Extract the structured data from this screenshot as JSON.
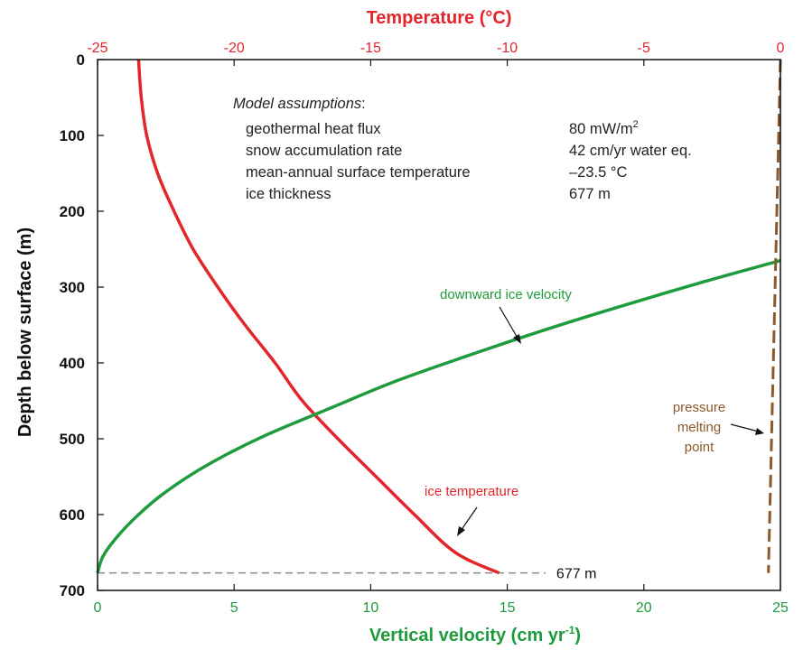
{
  "chart_data": {
    "type": "line",
    "title": "",
    "top_axis": {
      "label": "Temperature (°C)",
      "range": [
        -25,
        0
      ],
      "ticks": [
        "-25",
        "-20",
        "-15",
        "-10",
        "-5",
        "0"
      ],
      "color": "#e3262c"
    },
    "bottom_axis": {
      "label": "Vertical velocity (cm yr",
      "label_sup": "-1",
      "label_end": ")",
      "range": [
        0,
        25
      ],
      "ticks": [
        "0",
        "5",
        "10",
        "15",
        "20",
        "25"
      ],
      "color": "#1e9b3c"
    },
    "left_axis": {
      "label": "Depth below surface (m)",
      "range": [
        0,
        700
      ],
      "inverted": true,
      "ticks": [
        "0",
        "100",
        "200",
        "300",
        "400",
        "500",
        "600",
        "700"
      ]
    },
    "series": [
      {
        "name": "ice temperature",
        "axis": "top",
        "color": "#e3262c",
        "points": [
          [
            -23.5,
            0
          ],
          [
            -23.4,
            50
          ],
          [
            -23.2,
            100
          ],
          [
            -22.8,
            150
          ],
          [
            -22.2,
            200
          ],
          [
            -21.5,
            250
          ],
          [
            -20.6,
            300
          ],
          [
            -19.6,
            350
          ],
          [
            -18.5,
            400
          ],
          [
            -17.5,
            450
          ],
          [
            -16.2,
            500
          ],
          [
            -14.8,
            550
          ],
          [
            -13.4,
            600
          ],
          [
            -11.9,
            650
          ],
          [
            -10.3,
            677
          ]
        ]
      },
      {
        "name": "downward ice velocity",
        "axis": "bottom",
        "color": "#1e9b3c",
        "points": [
          [
            25,
            265
          ],
          [
            22,
            295
          ],
          [
            19,
            327
          ],
          [
            16.5,
            355
          ],
          [
            14,
            385
          ],
          [
            11,
            423
          ],
          [
            8.5,
            460
          ],
          [
            6,
            498
          ],
          [
            4,
            535
          ],
          [
            2.5,
            570
          ],
          [
            1.5,
            600
          ],
          [
            0.7,
            630
          ],
          [
            0.2,
            655
          ],
          [
            0,
            677
          ]
        ]
      },
      {
        "name": "pressure melting point",
        "axis": "top",
        "color": "#8b5a2b",
        "dashed": true,
        "points": [
          [
            0,
            0
          ],
          [
            -0.44,
            677
          ]
        ]
      }
    ],
    "reference_line": {
      "depth": 677,
      "label": "677 m"
    },
    "annotations": {
      "green": "downward ice velocity",
      "red": "ice temperature",
      "brown_1": "pressure",
      "brown_2": "melting",
      "brown_3": "point"
    },
    "assumptions": {
      "title": "Model assumptions",
      "title_suffix": ":",
      "rows": [
        {
          "label": "geothermal heat flux",
          "value": "80 mW/m",
          "sup": "2"
        },
        {
          "label": "snow accumulation rate",
          "value": "42 cm/yr water eq.",
          "sup": ""
        },
        {
          "label": "mean-annual surface temperature",
          "value": "–23.5 °C",
          "sup": ""
        },
        {
          "label": "ice thickness",
          "value": "677 m",
          "sup": ""
        }
      ]
    }
  }
}
